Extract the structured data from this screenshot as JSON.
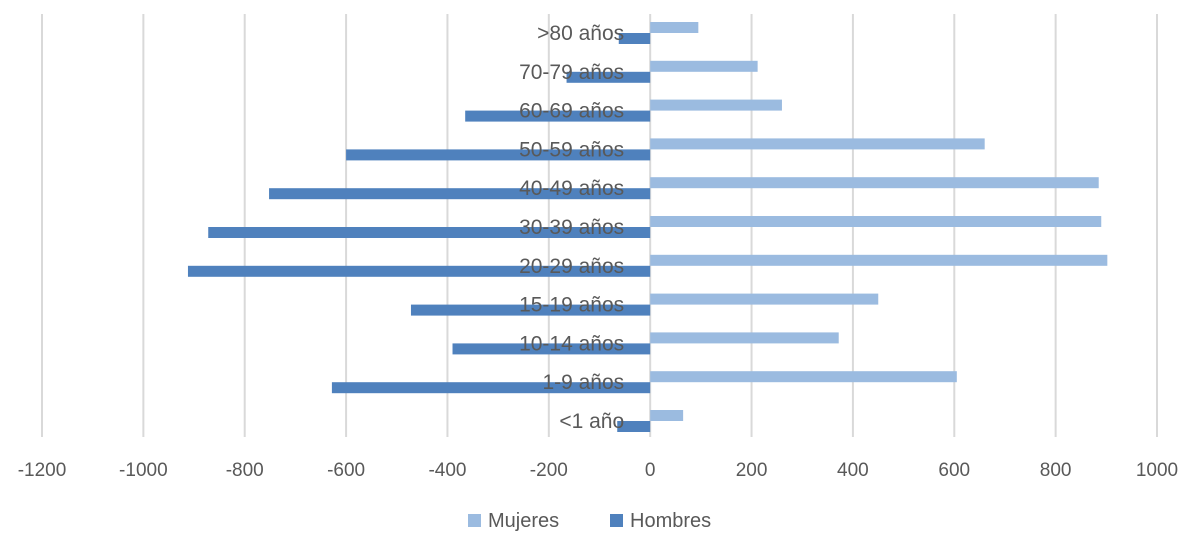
{
  "chart_data": {
    "type": "bar",
    "orientation": "horizontal",
    "categories": [
      ">80 años",
      "70-79 años",
      "60-69 años",
      "50-59 años",
      "40-49 años",
      "30-39 años",
      "20-29 años",
      "15-19 años",
      "10-14 años",
      "1-9 años",
      "<1 año"
    ],
    "series": [
      {
        "name": "Mujeres",
        "color": "#9bbbe0",
        "values": [
          95,
          212,
          260,
          660,
          885,
          890,
          902,
          450,
          372,
          605,
          65
        ]
      },
      {
        "name": "Hombres",
        "color": "#4f81bd",
        "values": [
          -62,
          -165,
          -365,
          -600,
          -752,
          -872,
          -912,
          -472,
          -390,
          -628,
          -65
        ]
      }
    ],
    "xlim": [
      -1200,
      1000
    ],
    "xticks": [
      "-1200",
      "-1000",
      "-800",
      "-600",
      "-400",
      "-200",
      "0",
      "200",
      "400",
      "600",
      "800",
      "1000"
    ],
    "xtick_values": [
      -1200,
      -1000,
      -800,
      -600,
      -400,
      -200,
      0,
      200,
      400,
      600,
      800,
      1000
    ],
    "grid": true,
    "legend_position": "bottom",
    "title": "",
    "xlabel": "",
    "ylabel": ""
  },
  "colors": {
    "grid": "#d9d9d9",
    "text": "#595959"
  }
}
